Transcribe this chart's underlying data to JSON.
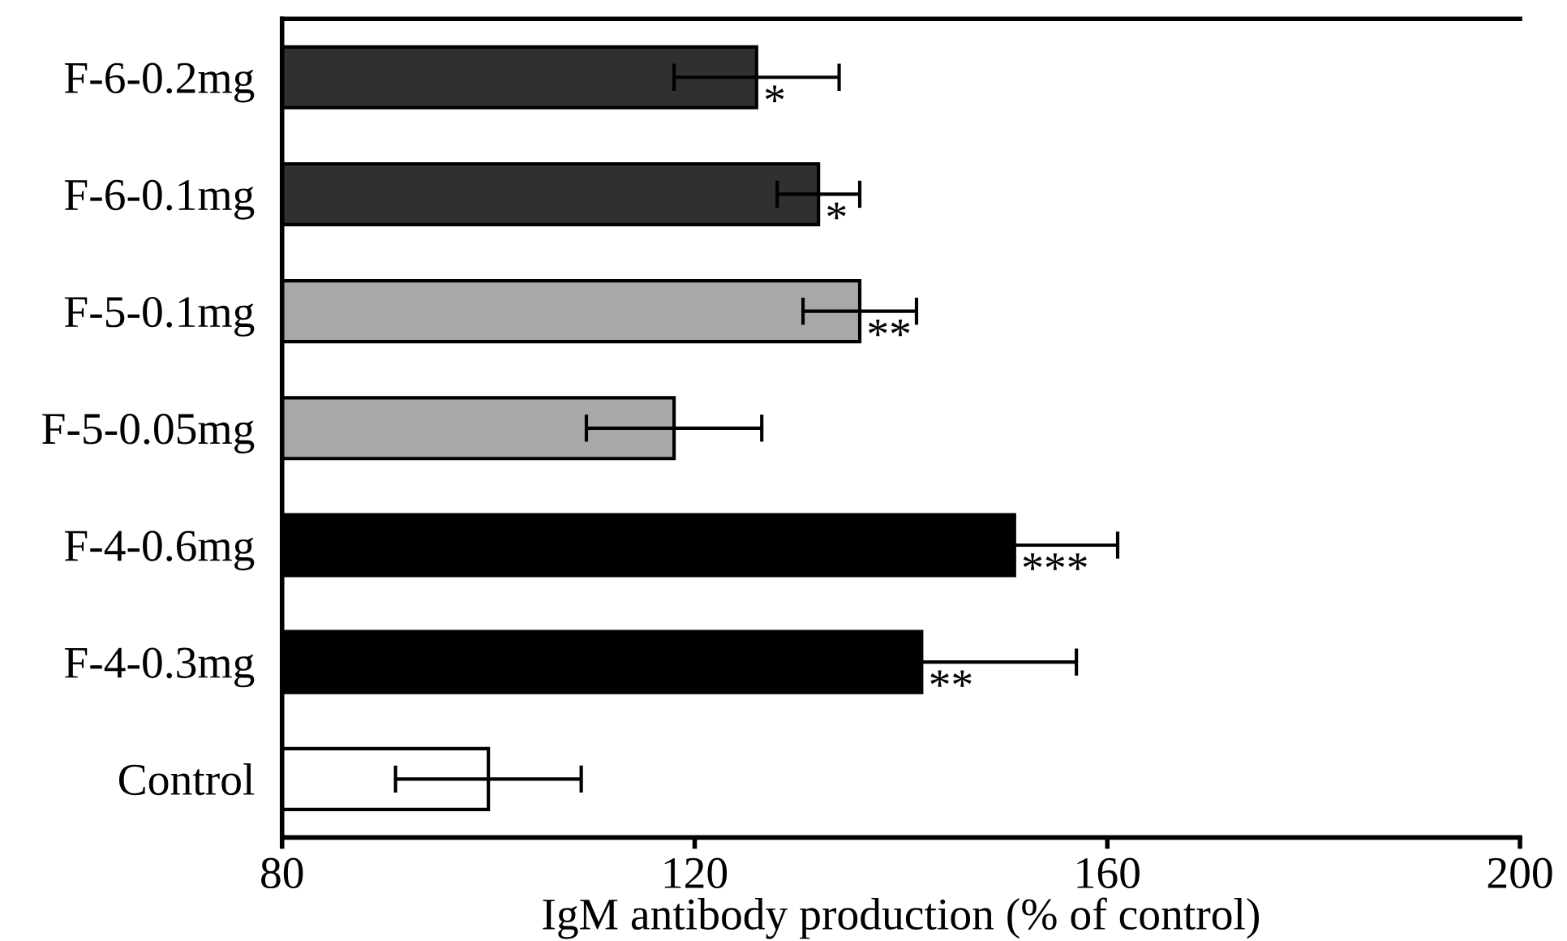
{
  "chart_data": {
    "type": "bar",
    "orientation": "horizontal",
    "xlabel": "IgM antibody production (% of control)",
    "categories": [
      "F-6-0.2mg",
      "F-6-0.1mg",
      "F-5-0.1mg",
      "F-5-0.05mg",
      "F-4-0.6mg",
      "F-4-0.3mg",
      "Control"
    ],
    "values": [
      126,
      132,
      136,
      118,
      151,
      142,
      100
    ],
    "errors": [
      8,
      4,
      5.5,
      8.5,
      10,
      15,
      9
    ],
    "colors": [
      "#303030",
      "#303030",
      "#a8a8a8",
      "#a8a8a8",
      "#000000",
      "#000000",
      "#ffffff"
    ],
    "xlim": [
      80,
      200
    ],
    "xticks": [
      80,
      120,
      160,
      200
    ],
    "grid": false,
    "annotations": [
      {
        "text": "*",
        "x": 126,
        "y": "F-6-0.2mg"
      },
      {
        "text": "*",
        "x": 132,
        "y": "F-6-0.1mg"
      },
      {
        "text": "**",
        "x": 136,
        "y": "F-5-0.1mg"
      },
      {
        "text": "***",
        "x": 151,
        "y": "F-4-0.6mg"
      },
      {
        "text": "**",
        "x": 142,
        "y": "F-4-0.3mg"
      }
    ]
  }
}
